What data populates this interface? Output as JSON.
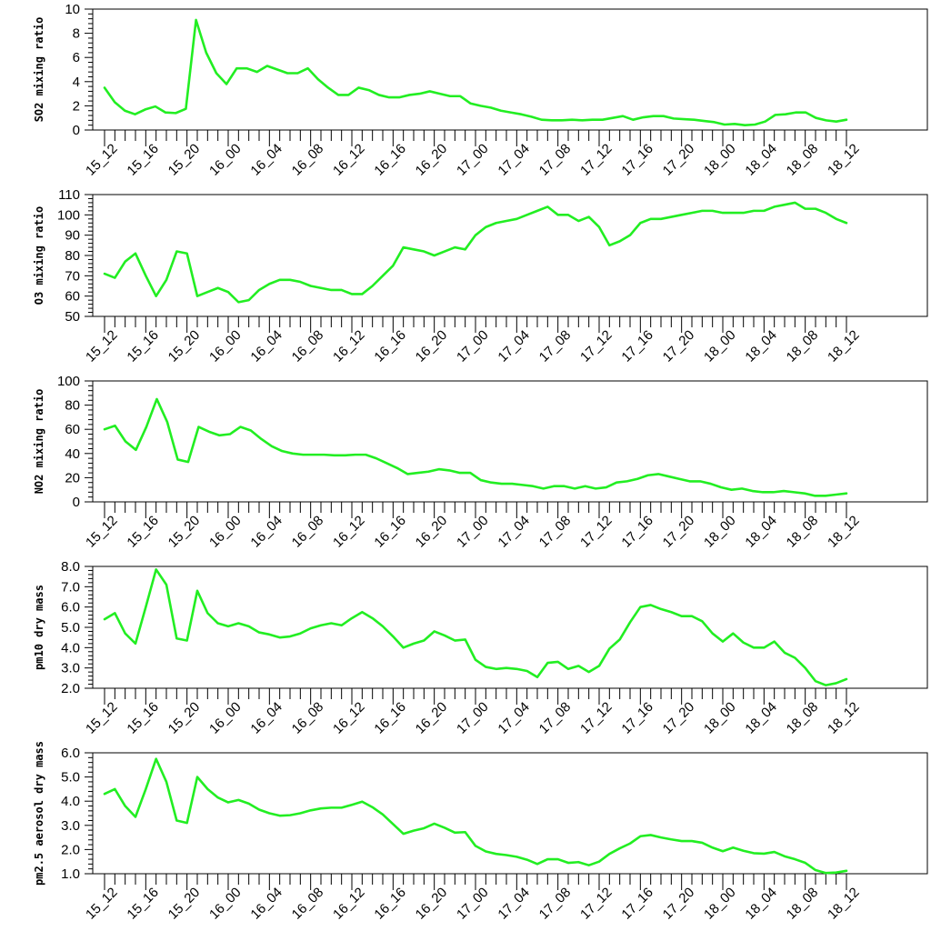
{
  "colors": {
    "line": "#22ee22",
    "axis": "#000000",
    "background": "#ffffff"
  },
  "chart_data": [
    {
      "type": "line",
      "ylabel": "SO2 mixing ratio",
      "ylim": [
        0,
        10
      ],
      "yticks": [
        0,
        2,
        4,
        6,
        8,
        10
      ],
      "ytick_labels": [
        "0",
        "2",
        "4",
        "6",
        "8",
        "10"
      ],
      "xticks": [
        "15_12",
        "15_16",
        "15_20",
        "16_00",
        "16_04",
        "16_08",
        "16_12",
        "16_16",
        "16_20",
        "17_00",
        "17_04",
        "17_08",
        "17_12",
        "17_16",
        "17_20",
        "18_00",
        "18_04",
        "18_08",
        "18_12"
      ],
      "series": [
        {
          "values": [
            3.5,
            2.3,
            1.6,
            1.3,
            1.7,
            1.95,
            1.45,
            1.4,
            1.75,
            9.1,
            6.4,
            4.7,
            3.8,
            5.1,
            5.1,
            4.8,
            5.3,
            5.0,
            4.7,
            4.7,
            5.1,
            4.2,
            3.5,
            2.9,
            2.9,
            3.5,
            3.3,
            2.9,
            2.7,
            2.7,
            2.9,
            3.0,
            3.2,
            3.0,
            2.8,
            2.8,
            2.2,
            2.0,
            1.85,
            1.6,
            1.45,
            1.3,
            1.1,
            0.85,
            0.8,
            0.8,
            0.85,
            0.8,
            0.85,
            0.85,
            1.0,
            1.15,
            0.85,
            1.05,
            1.15,
            1.15,
            0.95,
            0.9,
            0.85,
            0.75,
            0.65,
            0.45,
            0.5,
            0.4,
            0.45,
            0.7,
            1.25,
            1.3,
            1.45,
            1.45,
            1.0,
            0.8,
            0.7,
            0.85
          ]
        }
      ]
    },
    {
      "type": "line",
      "ylabel": "O3 mixing ratio",
      "ylim": [
        50,
        110
      ],
      "yticks": [
        50,
        60,
        70,
        80,
        90,
        100,
        110
      ],
      "ytick_labels": [
        "50",
        "60",
        "70",
        "80",
        "90",
        "100",
        "110"
      ],
      "xticks": [
        "15_12",
        "15_16",
        "15_20",
        "16_00",
        "16_04",
        "16_08",
        "16_12",
        "16_16",
        "16_20",
        "17_00",
        "17_04",
        "17_08",
        "17_12",
        "17_16",
        "17_20",
        "18_00",
        "18_04",
        "18_08",
        "18_12"
      ],
      "series": [
        {
          "values": [
            71,
            69,
            77,
            81,
            70,
            60,
            68,
            82,
            81,
            60,
            62,
            64,
            62,
            57,
            58,
            63,
            66,
            68,
            68,
            67,
            65,
            64,
            63,
            63,
            61,
            61,
            65,
            70,
            75,
            84,
            83,
            82,
            80,
            82,
            84,
            83,
            90,
            94,
            96,
            97,
            98,
            100,
            102,
            104,
            100,
            100,
            97,
            99,
            94,
            85,
            87,
            90,
            96,
            98,
            98,
            99,
            100,
            101,
            102,
            102,
            101,
            101,
            101,
            102,
            102,
            104,
            105,
            106,
            103,
            103,
            101,
            98,
            96
          ]
        }
      ]
    },
    {
      "type": "line",
      "ylabel": "NO2 mixing ratio",
      "ylim": [
        0,
        100
      ],
      "yticks": [
        0,
        20,
        40,
        60,
        80,
        100
      ],
      "ytick_labels": [
        "0",
        "20",
        "40",
        "60",
        "80",
        "100"
      ],
      "xticks": [
        "15_12",
        "15_16",
        "15_20",
        "16_00",
        "16_04",
        "16_08",
        "16_12",
        "16_16",
        "16_20",
        "17_00",
        "17_04",
        "17_08",
        "17_12",
        "17_16",
        "17_20",
        "18_00",
        "18_04",
        "18_08",
        "18_12"
      ],
      "series": [
        {
          "values": [
            60,
            63,
            50,
            43,
            62,
            85,
            66,
            35,
            33,
            62,
            58,
            55,
            56,
            62,
            59,
            52,
            46,
            42,
            40,
            39,
            39,
            39,
            38.5,
            38.5,
            39,
            39,
            36,
            32,
            28,
            23,
            24,
            25,
            27,
            26,
            24,
            24,
            18,
            16,
            15,
            15,
            14,
            13,
            11,
            13,
            13,
            11,
            13,
            11,
            12,
            16,
            17,
            19,
            22,
            23,
            21,
            19,
            17,
            17,
            15,
            12,
            10,
            11,
            9,
            8,
            8,
            9,
            8,
            7,
            5,
            5,
            6,
            7
          ]
        }
      ]
    },
    {
      "type": "line",
      "ylabel": "pm10 dry mass",
      "ylim": [
        2.0,
        8.0
      ],
      "yticks": [
        2,
        3,
        4,
        5,
        6,
        7,
        8
      ],
      "ytick_labels": [
        "2.0",
        "3.0",
        "4.0",
        "5.0",
        "6.0",
        "7.0",
        "8.0"
      ],
      "xticks": [
        "15_12",
        "15_16",
        "15_20",
        "16_00",
        "16_04",
        "16_08",
        "16_12",
        "16_16",
        "16_20",
        "17_00",
        "17_04",
        "17_08",
        "17_12",
        "17_16",
        "17_20",
        "18_00",
        "18_04",
        "18_08",
        "18_12"
      ],
      "series": [
        {
          "values": [
            5.4,
            5.7,
            4.7,
            4.2,
            6.0,
            7.85,
            7.1,
            4.45,
            4.35,
            6.8,
            5.7,
            5.2,
            5.05,
            5.2,
            5.05,
            4.75,
            4.65,
            4.5,
            4.55,
            4.7,
            4.95,
            5.1,
            5.2,
            5.1,
            5.45,
            5.75,
            5.45,
            5.05,
            4.55,
            4.0,
            4.2,
            4.35,
            4.8,
            4.6,
            4.35,
            4.4,
            3.4,
            3.05,
            2.95,
            3.0,
            2.95,
            2.85,
            2.55,
            3.25,
            3.3,
            2.95,
            3.1,
            2.8,
            3.1,
            3.95,
            4.4,
            5.25,
            6.0,
            6.1,
            5.9,
            5.75,
            5.55,
            5.55,
            5.3,
            4.7,
            4.3,
            4.7,
            4.25,
            4.0,
            4.0,
            4.3,
            3.75,
            3.5,
            3.0,
            2.35,
            2.15,
            2.25,
            2.45
          ]
        }
      ]
    },
    {
      "type": "line",
      "ylabel": "pm2.5 aerosol dry mass",
      "ylim": [
        1.0,
        6.0
      ],
      "yticks": [
        1,
        2,
        3,
        4,
        5,
        6
      ],
      "ytick_labels": [
        "1.0",
        "2.0",
        "3.0",
        "4.0",
        "5.0",
        "6.0"
      ],
      "xticks": [
        "15_12",
        "15_16",
        "15_20",
        "16_00",
        "16_04",
        "16_08",
        "16_12",
        "16_16",
        "16_20",
        "17_00",
        "17_04",
        "17_08",
        "17_12",
        "17_16",
        "17_20",
        "18_00",
        "18_04",
        "18_08",
        "18_12"
      ],
      "series": [
        {
          "values": [
            4.3,
            4.5,
            3.8,
            3.35,
            4.5,
            5.75,
            4.8,
            3.2,
            3.1,
            5.0,
            4.5,
            4.15,
            3.95,
            4.05,
            3.9,
            3.65,
            3.5,
            3.4,
            3.42,
            3.5,
            3.62,
            3.7,
            3.73,
            3.73,
            3.85,
            3.98,
            3.75,
            3.45,
            3.05,
            2.65,
            2.78,
            2.88,
            3.07,
            2.9,
            2.7,
            2.72,
            2.15,
            1.92,
            1.82,
            1.77,
            1.7,
            1.58,
            1.4,
            1.6,
            1.6,
            1.45,
            1.48,
            1.35,
            1.5,
            1.82,
            2.05,
            2.25,
            2.55,
            2.6,
            2.5,
            2.42,
            2.35,
            2.35,
            2.28,
            2.08,
            1.93,
            2.08,
            1.95,
            1.85,
            1.83,
            1.9,
            1.72,
            1.6,
            1.45,
            1.15,
            1.03,
            1.05,
            1.12
          ]
        }
      ]
    }
  ]
}
